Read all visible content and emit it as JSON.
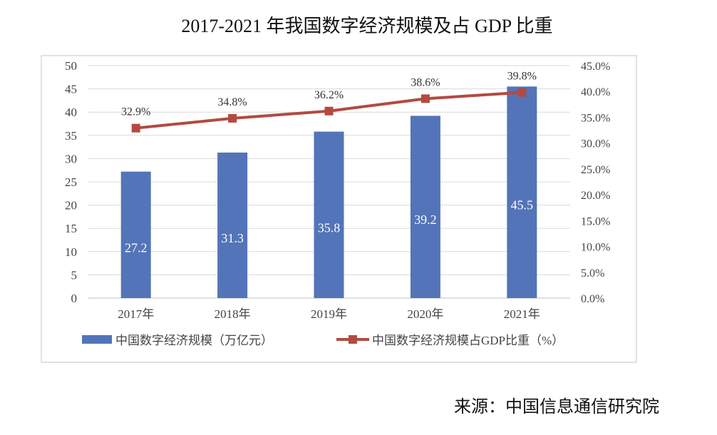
{
  "chart_data": {
    "type": "bar+line",
    "title": "2017-2021 年我国数字经济规模及占 GDP 比重",
    "categories": [
      "2017年",
      "2018年",
      "2019年",
      "2020年",
      "2021年"
    ],
    "series": [
      {
        "name": "中国数字经济规模（万亿元）",
        "type": "bar",
        "axis": "left",
        "values": [
          27.2,
          31.3,
          35.8,
          39.2,
          45.5
        ],
        "labels": [
          "27.2",
          "31.3",
          "35.8",
          "39.2",
          "45.5"
        ],
        "color": "#5374b8"
      },
      {
        "name": "中国数字经济规模占GDP比重（%）",
        "type": "line",
        "axis": "right",
        "values": [
          32.9,
          34.8,
          36.2,
          38.6,
          39.8
        ],
        "labels": [
          "32.9%",
          "34.8%",
          "36.2%",
          "38.6%",
          "39.8%"
        ],
        "color": "#b34a42"
      }
    ],
    "left_axis": {
      "ylim": [
        0,
        50
      ],
      "ticks": [
        "0",
        "5",
        "10",
        "15",
        "20",
        "25",
        "30",
        "35",
        "40",
        "45",
        "50"
      ]
    },
    "right_axis": {
      "ylim": [
        0,
        45
      ],
      "ticks": [
        "0.0%",
        "5.0%",
        "10.0%",
        "15.0%",
        "20.0%",
        "25.0%",
        "30.0%",
        "35.0%",
        "40.0%",
        "45.0%"
      ]
    },
    "grid": true,
    "legend": "bottom",
    "source": "来源：中国信息通信研究院"
  }
}
